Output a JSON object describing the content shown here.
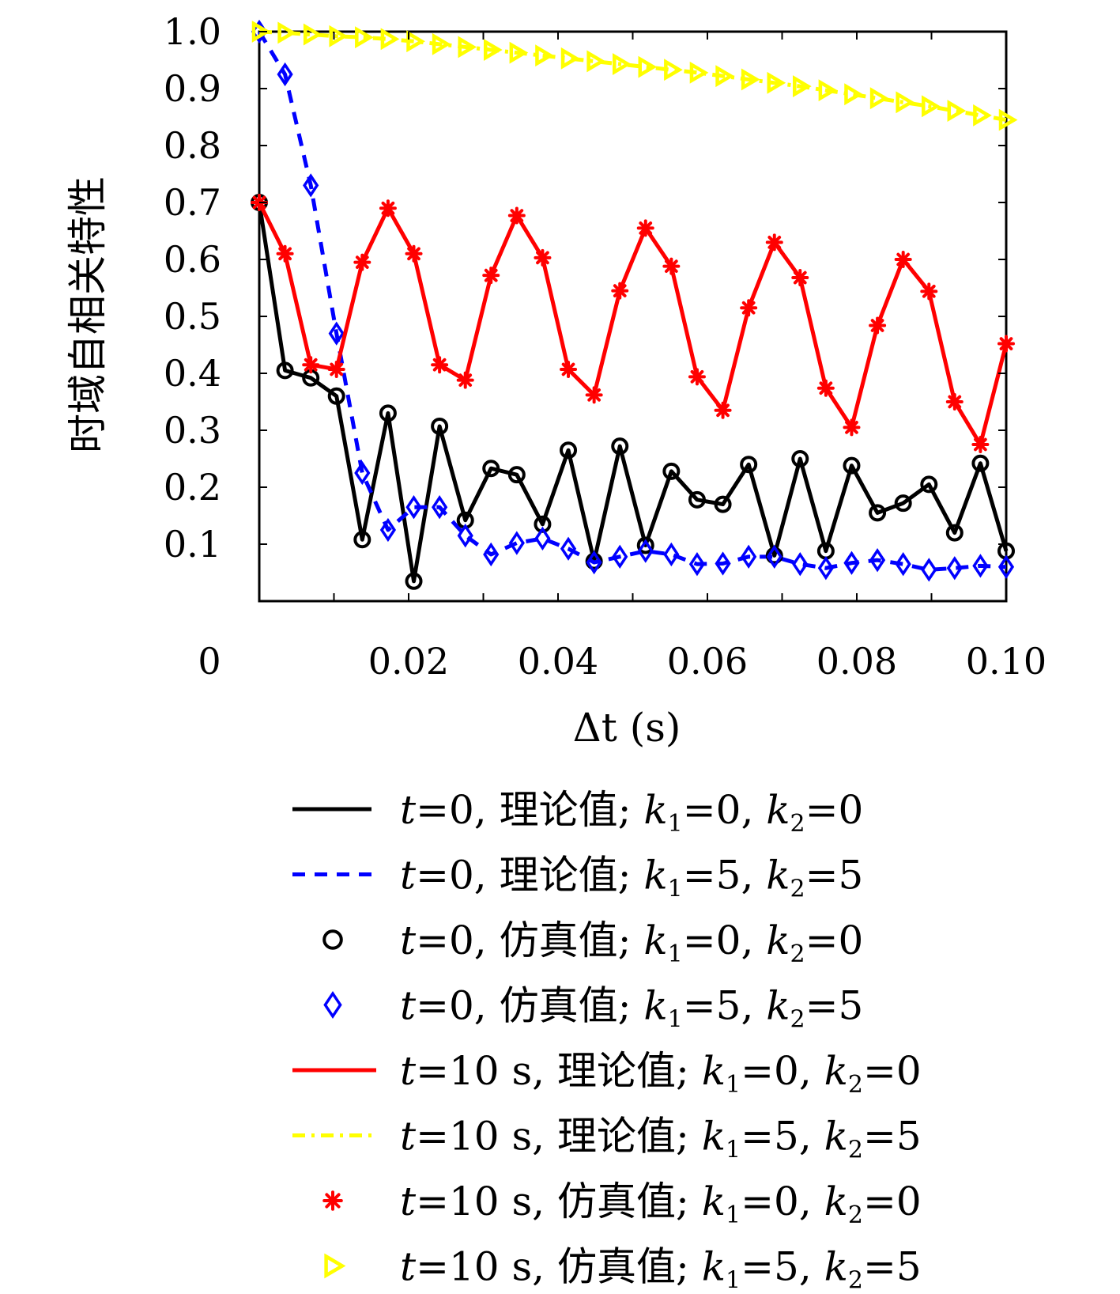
{
  "chart_data": {
    "type": "line",
    "title": "",
    "xlabel": "Δt (s)",
    "ylabel": "时域自相关特性",
    "xlim": [
      0,
      0.1
    ],
    "ylim": [
      0,
      1.0
    ],
    "x_ticks": [
      "0",
      "0.02",
      "0.04",
      "0.06",
      "0.08",
      "0.10"
    ],
    "y_ticks": [
      "0.1",
      "0.2",
      "0.3",
      "0.4",
      "0.5",
      "0.6",
      "0.7",
      "0.8",
      "0.9",
      "1.0"
    ],
    "grid": false,
    "legend_position": "bottom",
    "x": [
      0.0,
      0.00345,
      0.0069,
      0.01034,
      0.01379,
      0.01724,
      0.02069,
      0.02414,
      0.02759,
      0.03103,
      0.03448,
      0.03793,
      0.04138,
      0.04483,
      0.04828,
      0.05172,
      0.05517,
      0.05862,
      0.06207,
      0.06552,
      0.06897,
      0.07241,
      0.07586,
      0.07931,
      0.08276,
      0.08621,
      0.08966,
      0.0931,
      0.09655,
      0.1
    ],
    "series": [
      {
        "legend_id": "t0-theory-k00",
        "color": "#000000",
        "dash": "solid",
        "marker": "none",
        "values": [
          0.7,
          0.405,
          0.392,
          0.36,
          0.108,
          0.33,
          0.035,
          0.307,
          0.142,
          0.233,
          0.222,
          0.135,
          0.265,
          0.07,
          0.272,
          0.098,
          0.228,
          0.178,
          0.17,
          0.24,
          0.08,
          0.25,
          0.088,
          0.238,
          0.155,
          0.172,
          0.205,
          0.12,
          0.242,
          0.088
        ]
      },
      {
        "legend_id": "t0-theory-k55",
        "color": "#0000ff",
        "dash": "dashed",
        "marker": "none",
        "values": [
          1.0,
          0.925,
          0.73,
          0.47,
          0.225,
          0.125,
          0.165,
          0.165,
          0.115,
          0.082,
          0.102,
          0.11,
          0.092,
          0.068,
          0.078,
          0.088,
          0.082,
          0.065,
          0.066,
          0.078,
          0.078,
          0.065,
          0.058,
          0.067,
          0.072,
          0.065,
          0.055,
          0.058,
          0.062,
          0.06
        ]
      },
      {
        "legend_id": "t0-sim-k00",
        "color": "#000000",
        "dash": "none",
        "marker": "circle",
        "values": [
          0.7,
          0.405,
          0.392,
          0.36,
          0.108,
          0.33,
          0.035,
          0.307,
          0.142,
          0.233,
          0.222,
          0.135,
          0.265,
          0.07,
          0.272,
          0.098,
          0.228,
          0.178,
          0.17,
          0.24,
          0.08,
          0.25,
          0.088,
          0.238,
          0.155,
          0.172,
          0.205,
          0.12,
          0.242,
          0.088
        ]
      },
      {
        "legend_id": "t0-sim-k55",
        "color": "#0000ff",
        "dash": "none",
        "marker": "diamond",
        "values": [
          1.0,
          0.925,
          0.73,
          0.47,
          0.225,
          0.125,
          0.165,
          0.165,
          0.115,
          0.082,
          0.102,
          0.11,
          0.092,
          0.068,
          0.078,
          0.088,
          0.082,
          0.065,
          0.066,
          0.078,
          0.078,
          0.065,
          0.058,
          0.067,
          0.072,
          0.065,
          0.055,
          0.058,
          0.062,
          0.06
        ]
      },
      {
        "legend_id": "t10-theory-k00",
        "color": "#ff0000",
        "dash": "solid",
        "marker": "none",
        "values": [
          0.7,
          0.61,
          0.415,
          0.407,
          0.595,
          0.69,
          0.61,
          0.415,
          0.388,
          0.572,
          0.677,
          0.603,
          0.407,
          0.362,
          0.545,
          0.655,
          0.588,
          0.394,
          0.335,
          0.515,
          0.63,
          0.568,
          0.374,
          0.305,
          0.484,
          0.6,
          0.544,
          0.35,
          0.275,
          0.452
        ]
      },
      {
        "legend_id": "t10-theory-k55",
        "color": "#ffff00",
        "dash": "dashdot",
        "marker": "none",
        "values": [
          1.0,
          0.998,
          0.995,
          0.992,
          0.99,
          0.987,
          0.983,
          0.978,
          0.973,
          0.968,
          0.963,
          0.958,
          0.953,
          0.948,
          0.943,
          0.938,
          0.933,
          0.928,
          0.922,
          0.916,
          0.91,
          0.904,
          0.897,
          0.89,
          0.883,
          0.876,
          0.869,
          0.861,
          0.853,
          0.845
        ]
      },
      {
        "legend_id": "t10-sim-k00",
        "color": "#ff0000",
        "dash": "none",
        "marker": "asterisk",
        "values": [
          0.7,
          0.61,
          0.415,
          0.407,
          0.595,
          0.69,
          0.61,
          0.415,
          0.388,
          0.572,
          0.677,
          0.603,
          0.407,
          0.362,
          0.545,
          0.655,
          0.588,
          0.394,
          0.335,
          0.515,
          0.63,
          0.568,
          0.374,
          0.305,
          0.484,
          0.6,
          0.544,
          0.35,
          0.275,
          0.452
        ]
      },
      {
        "legend_id": "t10-sim-k55",
        "color": "#ffff00",
        "dash": "none",
        "marker": "triangle-right",
        "values": [
          1.0,
          0.998,
          0.995,
          0.992,
          0.99,
          0.987,
          0.983,
          0.978,
          0.973,
          0.968,
          0.963,
          0.958,
          0.953,
          0.948,
          0.943,
          0.938,
          0.933,
          0.928,
          0.922,
          0.916,
          0.91,
          0.904,
          0.897,
          0.89,
          0.883,
          0.876,
          0.869,
          0.861,
          0.853,
          0.845
        ]
      }
    ],
    "legend": [
      {
        "t": "t",
        "t_rest": "=0, 理论值; ",
        "k1": "k",
        "k1_sub": "1",
        "k1_val": "=0, ",
        "k2": "k",
        "k2_sub": "2",
        "k2_val": "=0"
      },
      {
        "t": "t",
        "t_rest": "=0, 理论值; ",
        "k1": "k",
        "k1_sub": "1",
        "k1_val": "=5, ",
        "k2": "k",
        "k2_sub": "2",
        "k2_val": "=5"
      },
      {
        "t": "t",
        "t_rest": "=0, 仿真值; ",
        "k1": "k",
        "k1_sub": "1",
        "k1_val": "=0, ",
        "k2": "k",
        "k2_sub": "2",
        "k2_val": "=0"
      },
      {
        "t": "t",
        "t_rest": "=0, 仿真值; ",
        "k1": "k",
        "k1_sub": "1",
        "k1_val": "=5, ",
        "k2": "k",
        "k2_sub": "2",
        "k2_val": "=5"
      },
      {
        "t": "t",
        "t_rest": "=10 s, 理论值; ",
        "k1": "k",
        "k1_sub": "1",
        "k1_val": "=0, ",
        "k2": "k",
        "k2_sub": "2",
        "k2_val": "=0"
      },
      {
        "t": "t",
        "t_rest": "=10 s, 理论值; ",
        "k1": "k",
        "k1_sub": "1",
        "k1_val": "=5, ",
        "k2": "k",
        "k2_sub": "2",
        "k2_val": "=5"
      },
      {
        "t": "t",
        "t_rest": "=10 s, 仿真值; ",
        "k1": "k",
        "k1_sub": "1",
        "k1_val": "=0, ",
        "k2": "k",
        "k2_sub": "2",
        "k2_val": "=0"
      },
      {
        "t": "t",
        "t_rest": "=10 s, 仿真值; ",
        "k1": "k",
        "k1_sub": "1",
        "k1_val": "=5, ",
        "k2": "k",
        "k2_sub": "2",
        "k2_val": "=5"
      }
    ]
  }
}
